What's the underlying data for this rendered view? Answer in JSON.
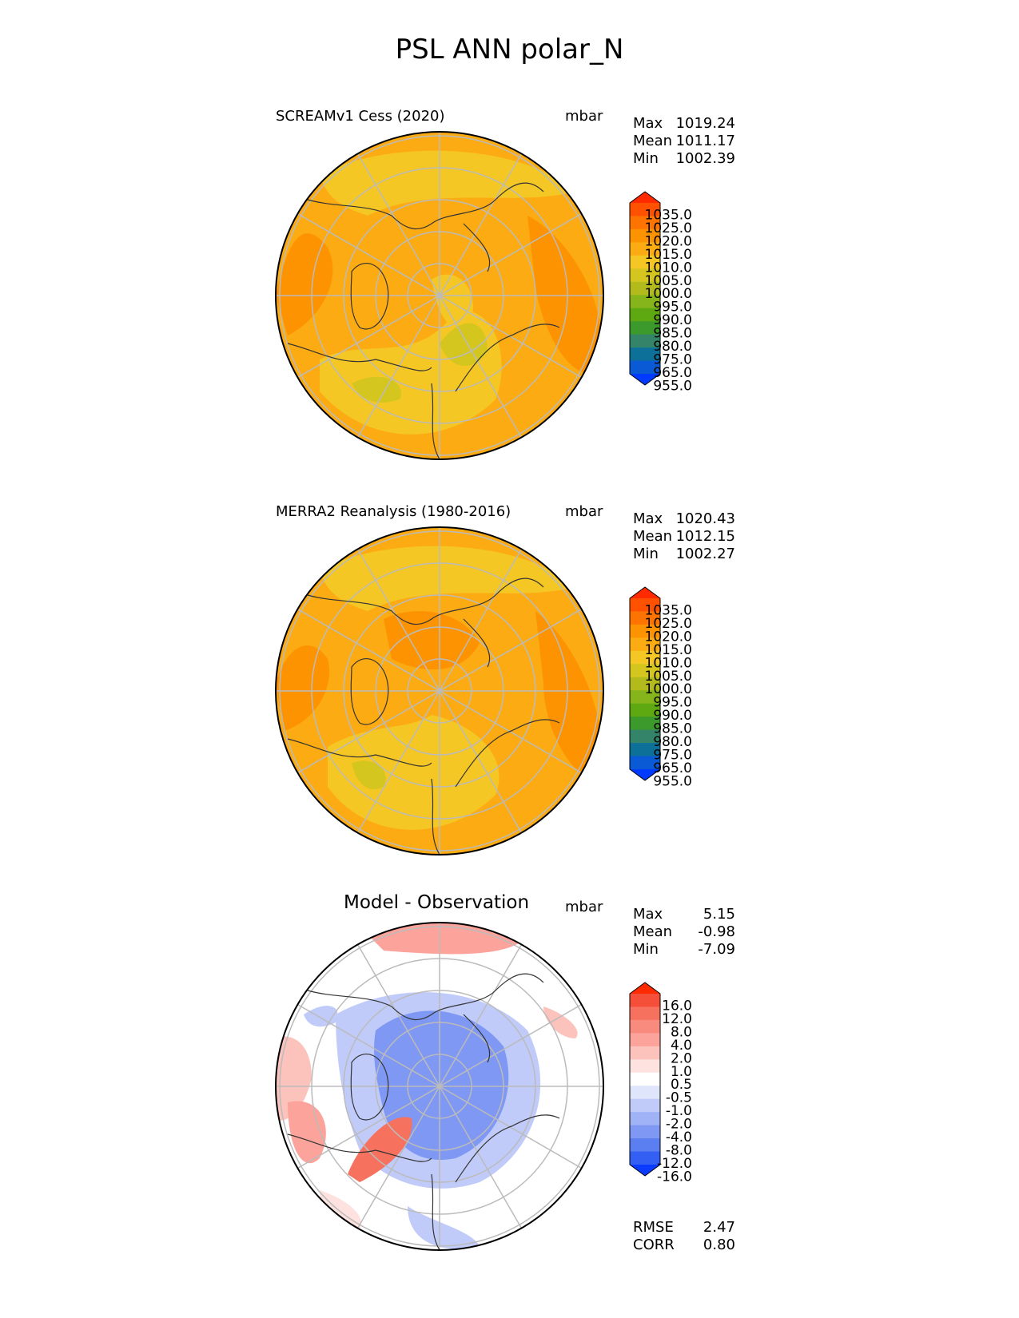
{
  "figure_title": "PSL ANN polar_N",
  "panels": [
    {
      "title": "SCREAMv1 Cess (2020)",
      "units": "mbar",
      "stats": [
        {
          "label": "Max",
          "value": "1019.24"
        },
        {
          "label": "Mean",
          "value": "1011.17"
        },
        {
          "label": "Min",
          "value": "1002.39"
        }
      ],
      "colorbar": {
        "labels": [
          "1035.0",
          "1025.0",
          "1020.0",
          "1015.0",
          "1010.0",
          "1005.0",
          "1000.0",
          "995.0",
          "990.0",
          "985.0",
          "980.0",
          "975.0",
          "965.0",
          "955.0"
        ],
        "colors": [
          "#ff2a00",
          "#ff5100",
          "#ff7400",
          "#fd9300",
          "#fcab12",
          "#f5c724",
          "#d4c61e",
          "#b2bb1b",
          "#86b41b",
          "#5ea812",
          "#3c9a2c",
          "#338468",
          "#0d7099",
          "#0a5ad6",
          "#0039ff"
        ]
      }
    },
    {
      "title": "MERRA2 Reanalysis (1980-2016)",
      "units": "mbar",
      "stats": [
        {
          "label": "Max",
          "value": "1020.43"
        },
        {
          "label": "Mean",
          "value": "1012.15"
        },
        {
          "label": "Min",
          "value": "1002.27"
        }
      ],
      "colorbar": {
        "labels": [
          "1035.0",
          "1025.0",
          "1020.0",
          "1015.0",
          "1010.0",
          "1005.0",
          "1000.0",
          "995.0",
          "990.0",
          "985.0",
          "980.0",
          "975.0",
          "965.0",
          "955.0"
        ],
        "colors": [
          "#ff2a00",
          "#ff5100",
          "#ff7400",
          "#fd9300",
          "#fcab12",
          "#f5c724",
          "#d4c61e",
          "#b2bb1b",
          "#86b41b",
          "#5ea812",
          "#3c9a2c",
          "#338468",
          "#0d7099",
          "#0a5ad6",
          "#0039ff"
        ]
      }
    },
    {
      "title": "Model - Observation",
      "units": "mbar",
      "stats": [
        {
          "label": "Max",
          "value": "5.15"
        },
        {
          "label": "Mean",
          "value": "-0.98"
        },
        {
          "label": "Min",
          "value": "-7.09"
        }
      ],
      "colorbar": {
        "labels": [
          "16.0",
          "12.0",
          "8.0",
          "4.0",
          "2.0",
          "1.0",
          "0.5",
          "-0.5",
          "-1.0",
          "-2.0",
          "-4.0",
          "-8.0",
          "-12.0",
          "-16.0"
        ],
        "colors": [
          "#ff2a00",
          "#f54f3a",
          "#f6725f",
          "#f98a7e",
          "#fca49b",
          "#fcc2bc",
          "#fde2df",
          "#ffffff",
          "#dfe5fb",
          "#c0cbf9",
          "#a1b3f7",
          "#7f98f3",
          "#5b7ef1",
          "#3360f3",
          "#0a3bff"
        ]
      },
      "summary": [
        {
          "label": "RMSE",
          "value": "2.47"
        },
        {
          "label": "CORR",
          "value": "0.80"
        }
      ]
    }
  ]
}
